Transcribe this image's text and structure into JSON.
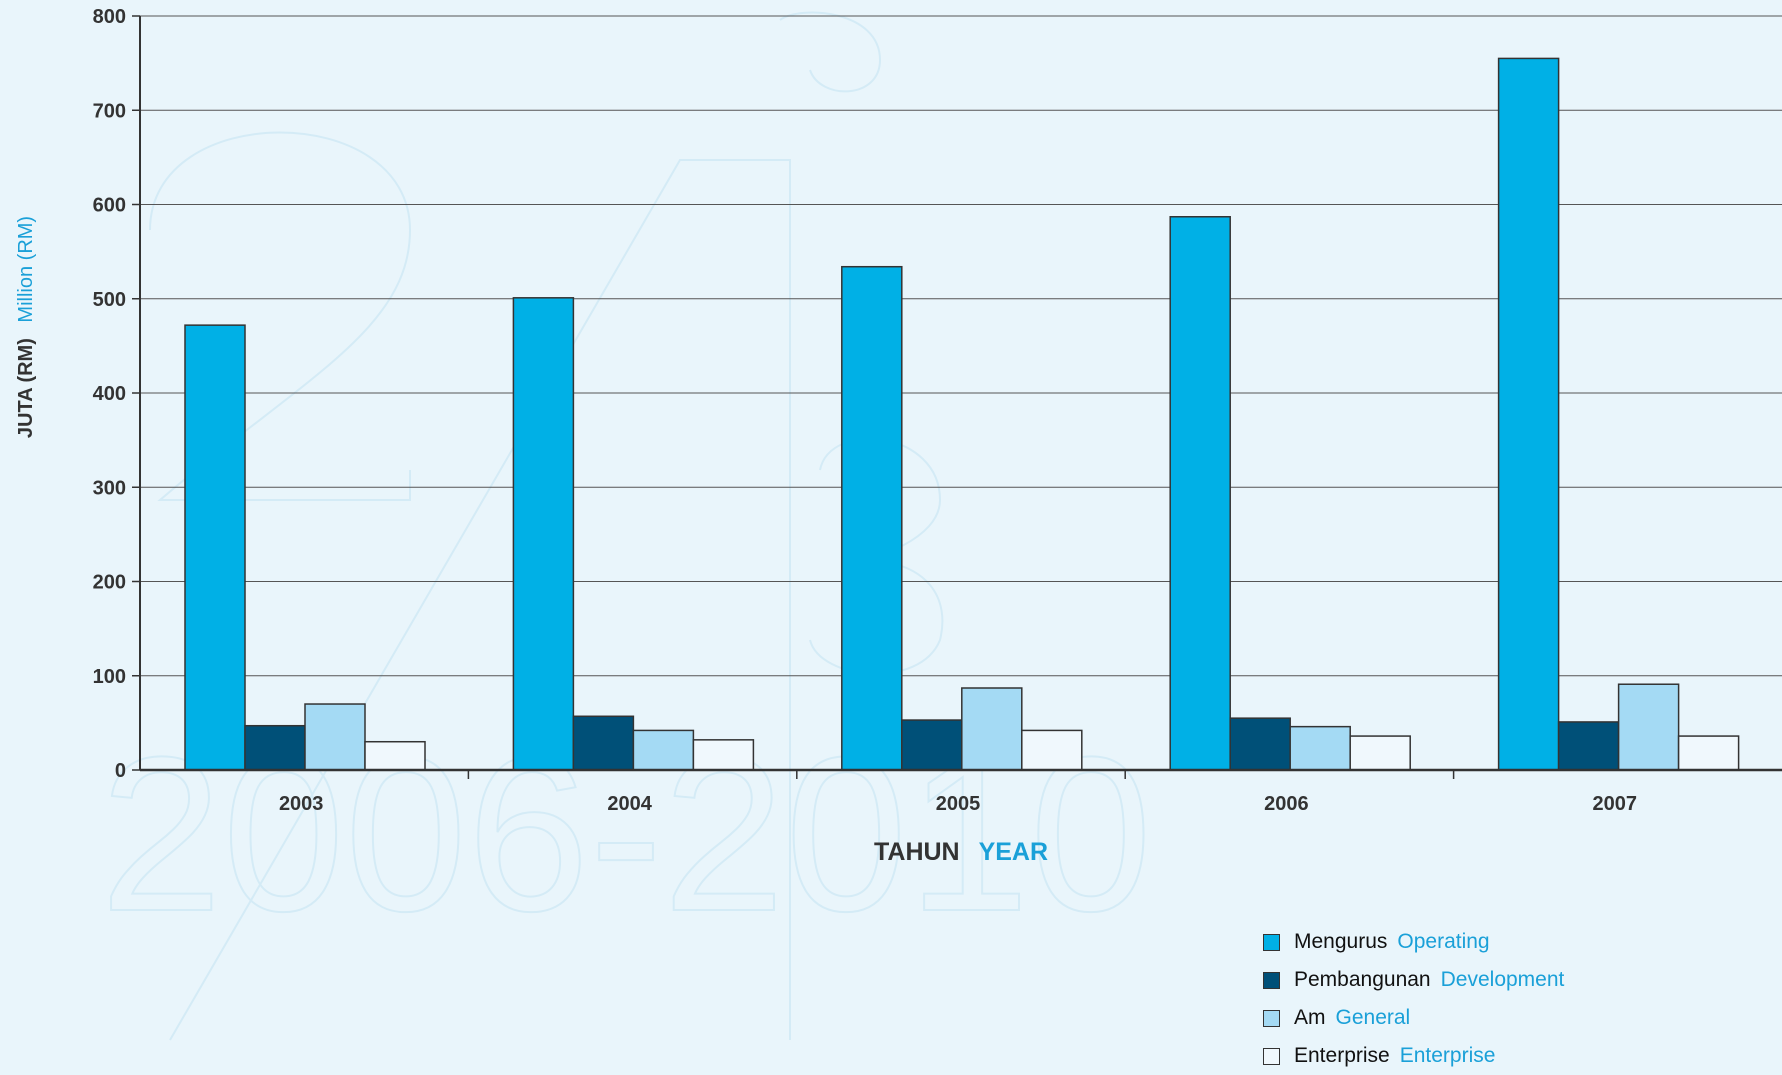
{
  "chart_data": {
    "type": "bar",
    "categories": [
      "2003",
      "2004",
      "2005",
      "2006",
      "2007"
    ],
    "series": [
      {
        "name": "Mengurus",
        "name_en": "Operating",
        "color": "#00b0e6",
        "values": [
          472,
          501,
          534,
          587,
          755
        ]
      },
      {
        "name": "Pembangunan",
        "name_en": "Development",
        "color": "#005078",
        "values": [
          47,
          57,
          53,
          55,
          51
        ]
      },
      {
        "name": "Am",
        "name_en": "General",
        "color": "#a4daf4",
        "values": [
          70,
          42,
          87,
          46,
          91
        ]
      },
      {
        "name": "Enterprise",
        "name_en": "Enterprise",
        "color": "#f0f8fd",
        "values": [
          30,
          32,
          42,
          36,
          36
        ]
      }
    ],
    "xlabel": "TAHUN",
    "xlabel_en": "YEAR",
    "ylabel": "JUTA (RM)",
    "ylabel_en": "Million (RM)",
    "ylim": [
      0,
      800
    ],
    "yticks": [
      0,
      100,
      200,
      300,
      400,
      500,
      600,
      700,
      800
    ],
    "grid": true,
    "legend_position": "bottom-right"
  }
}
